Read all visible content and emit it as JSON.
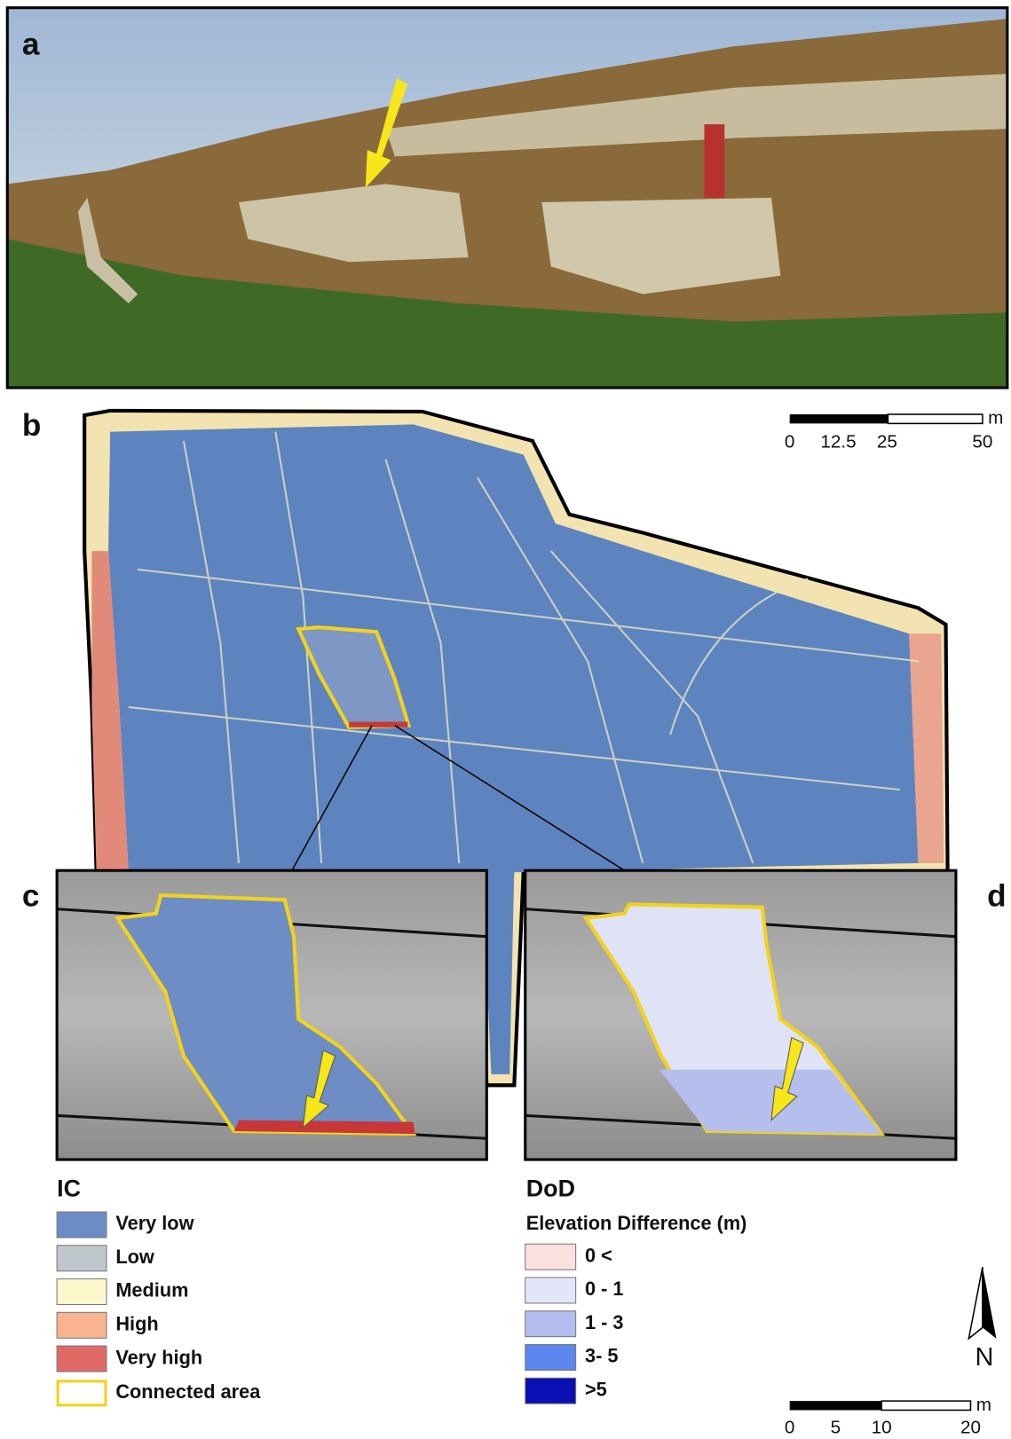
{
  "panels": [
    "a",
    "b",
    "c",
    "d"
  ],
  "scale_bar_b": {
    "unit": "m",
    "labels": [
      "0",
      "12.5",
      "25",
      "50"
    ]
  },
  "ic_legend": {
    "title": "IC",
    "items": [
      {
        "label": "Very low",
        "color": "#6b8cc6"
      },
      {
        "label": "Low",
        "color": "#bfc6cc"
      },
      {
        "label": "Medium",
        "color": "#fdf7cd"
      },
      {
        "label": "High",
        "color": "#f7b48f"
      },
      {
        "label": "Very high",
        "color": "#e06a67"
      }
    ],
    "outline": {
      "label": "Connected area",
      "color": "#f2d31b"
    }
  },
  "dod_legend": {
    "title": "DoD",
    "subtitle": "Elevation Difference (m)",
    "items": [
      {
        "label": "0 <",
        "color": "#fde0e0"
      },
      {
        "label": "0 - 1",
        "color": "#e3e6f8"
      },
      {
        "label": "1 - 3",
        "color": "#b3bdf0"
      },
      {
        "label": "3- 5",
        "color": "#5b86ee"
      },
      {
        "label": ">5",
        "color": "#0a10b4"
      }
    ]
  },
  "north": "N",
  "scale_bar_cd": {
    "unit": "m",
    "labels": [
      "0",
      "5",
      "10",
      "20"
    ]
  }
}
